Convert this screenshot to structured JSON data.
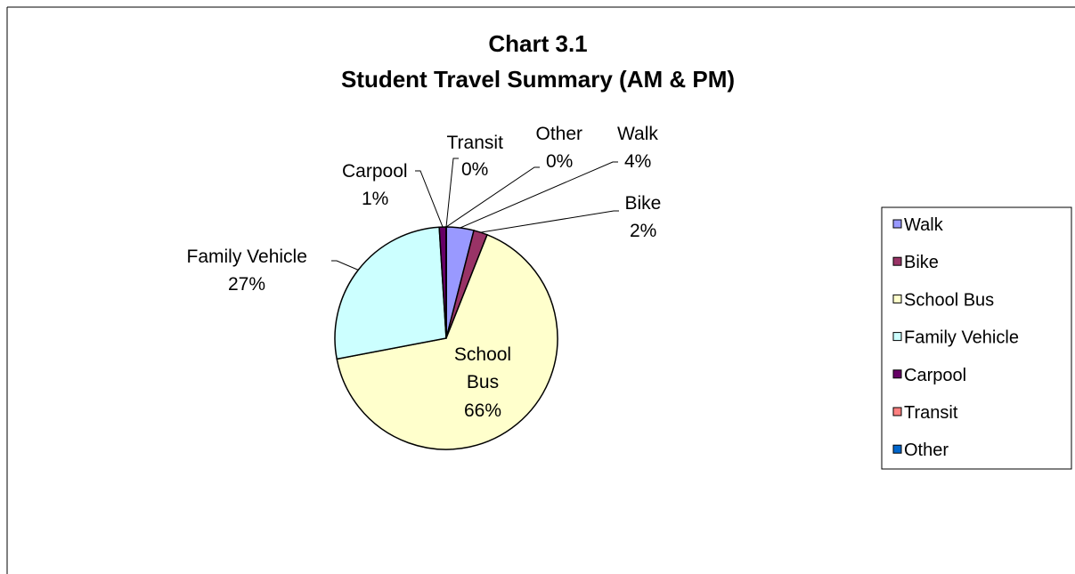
{
  "chart_data": {
    "type": "pie",
    "title": "Chart 3.1",
    "subtitle": "Student Travel Summary (AM & PM)",
    "categories": [
      "Walk",
      "Bike",
      "School Bus",
      "Family Vehicle",
      "Carpool",
      "Transit",
      "Other"
    ],
    "values": [
      4,
      2,
      66,
      27,
      1,
      0,
      0
    ],
    "value_labels": [
      "4%",
      "2%",
      "66%",
      "27%",
      "1%",
      "0%",
      "0%"
    ],
    "colors": [
      "#9999ff",
      "#993366",
      "#ffffcc",
      "#ccffff",
      "#660066",
      "#ff8080",
      "#0066cc"
    ],
    "legend": "right"
  }
}
